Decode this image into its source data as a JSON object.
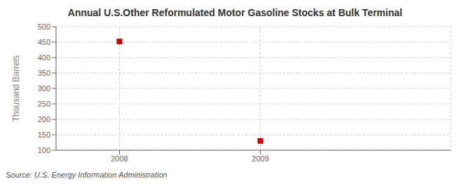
{
  "chart_data": {
    "type": "scatter",
    "title": "Annual U.S.Other Reformulated Motor Gasoline Stocks at Bulk Terminal",
    "ylabel": "Thousand Barrels",
    "source": "Source: U.S. Energy Information Administration",
    "x": [
      2008,
      2009
    ],
    "values": [
      452,
      130
    ],
    "color": "#cc0000",
    "marker": "square",
    "xlim": [
      2007.55,
      2010.35
    ],
    "xticks": [
      2008,
      2009
    ],
    "ylim": [
      100,
      500
    ],
    "yticks": [
      100,
      150,
      200,
      250,
      300,
      350,
      400,
      450,
      500
    ],
    "grid": true
  }
}
